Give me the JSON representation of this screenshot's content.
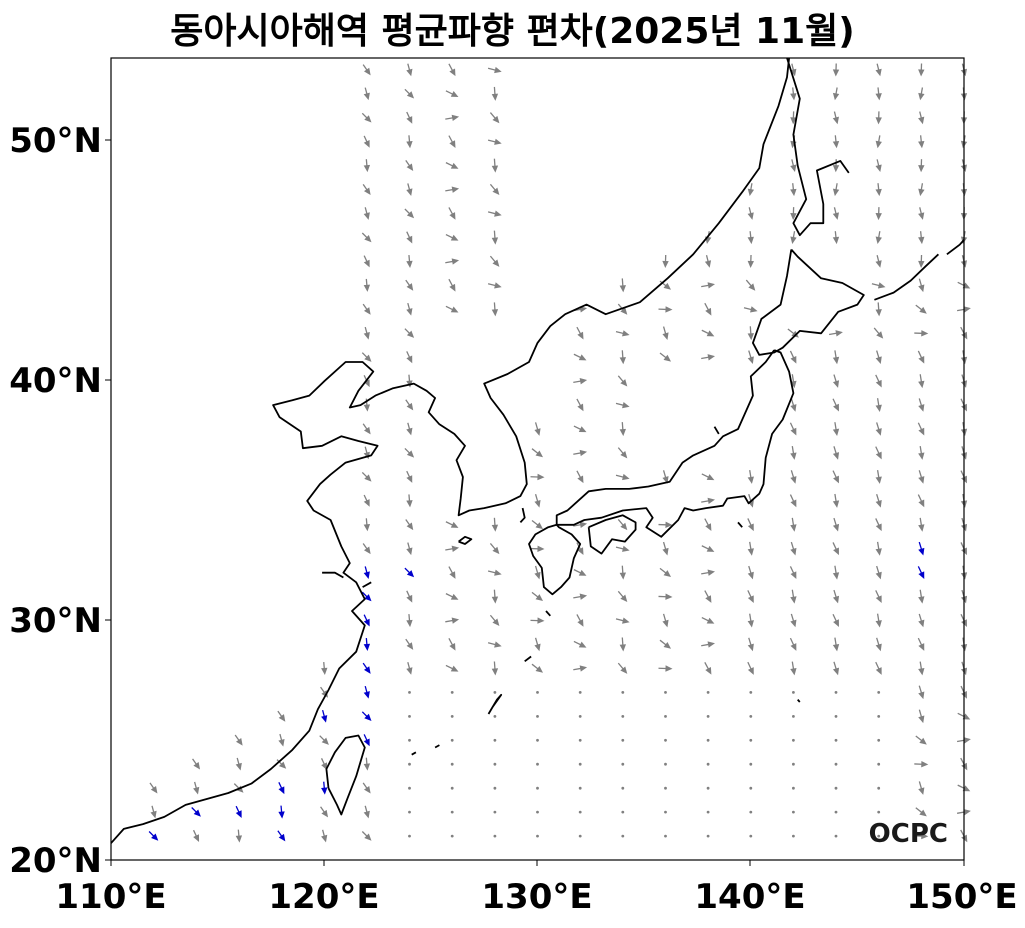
{
  "title": "동아시아해역 평균파향 편차(2025년 11월)",
  "map": {
    "lon_range": [
      110,
      150
    ],
    "lat_range": [
      20,
      53.5
    ],
    "lon_ticks": [
      "110°E",
      "120°E",
      "130°E",
      "140°E",
      "150°E"
    ],
    "lat_ticks": [
      "20°N",
      "30°N",
      "40°N",
      "50°N"
    ],
    "logo": "OCPC",
    "colors": {
      "coastline": "#000000",
      "arrow_default": "#808080",
      "arrow_highlight": "#0000cc"
    }
  }
}
